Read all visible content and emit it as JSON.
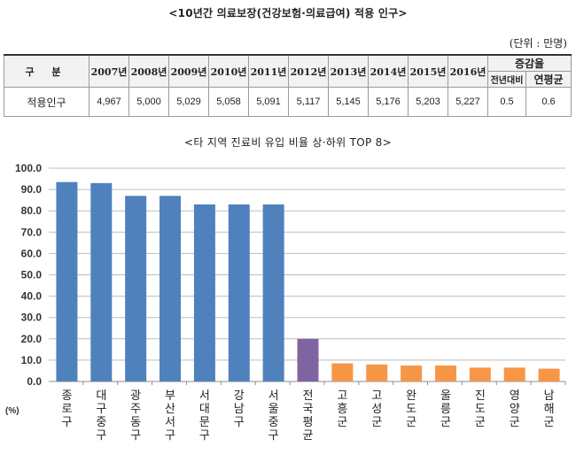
{
  "table_title": "<10년간 의료보장(건강보험·의료급여)  적용 인구>",
  "table_unit": "(단위 : 만명)",
  "table": {
    "label_header": "구 분",
    "years": [
      "2007년",
      "2008년",
      "2009년",
      "2010년",
      "2011년",
      "2012년",
      "2013년",
      "2014년",
      "2015년",
      "2016년"
    ],
    "growth_header": "증감율",
    "growth_sub": [
      "전년대비",
      "연평균"
    ],
    "row_label": "적용인구",
    "values": [
      "4,967",
      "5,000",
      "5,029",
      "5,058",
      "5,091",
      "5,117",
      "5,145",
      "5,176",
      "5,203",
      "5,227"
    ],
    "growth_values": [
      "0.5",
      "0.6"
    ]
  },
  "chart_title": "<타 지역 진료비 유입 비율 상·하위 TOP 8>",
  "chart_data": {
    "type": "bar",
    "title": "<타 지역 진료비 유입 비율 상·하위 TOP 8>",
    "ylabel": "(%)",
    "xlabel": "",
    "ylim": [
      0,
      100
    ],
    "yticks": [
      "0.0",
      "10.0",
      "20.0",
      "30.0",
      "40.0",
      "50.0",
      "60.0",
      "70.0",
      "80.0",
      "90.0",
      "100.0"
    ],
    "grid": true,
    "categories": [
      "종로구",
      "대구중구",
      "광주동구",
      "부산서구",
      "서대문구",
      "강남구",
      "서울중구",
      "전국평균",
      "고흥군",
      "고성군",
      "완도군",
      "울릉군",
      "진도군",
      "영양군",
      "남해군"
    ],
    "values": [
      93.5,
      93.0,
      87.0,
      87.0,
      83.0,
      83.0,
      83.0,
      20.0,
      8.5,
      8.0,
      7.5,
      7.5,
      6.5,
      6.5,
      6.0
    ],
    "colors": [
      "#4f81bd",
      "#4f81bd",
      "#4f81bd",
      "#4f81bd",
      "#4f81bd",
      "#4f81bd",
      "#4f81bd",
      "#8064a2",
      "#f79646",
      "#f79646",
      "#f79646",
      "#f79646",
      "#f79646",
      "#f79646",
      "#f79646"
    ]
  }
}
